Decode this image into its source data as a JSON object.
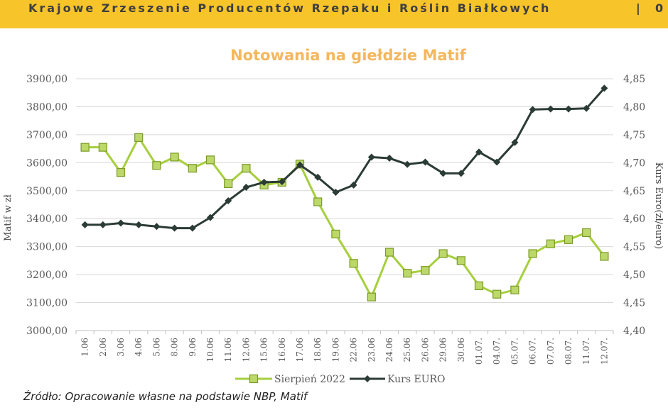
{
  "header": {
    "organization": "Krajowe Zrzeszenie Producentów Rzepaku i Roślin Białkowych",
    "separator": "|",
    "page_number": "0"
  },
  "source_note": "Źródło: Opracowanie własne na podstawie NBP, Matif",
  "colors": {
    "header_bg": "#f7c42a",
    "title": "#f4b75e",
    "series_matif": "#a6cf3c",
    "series_euro": "#2b3b35",
    "grid": "#d9d9d9"
  },
  "chart_data": {
    "type": "line",
    "title": "Notowania na giełdzie Matif",
    "ylabel_left": "Matif w zł",
    "ylabel_right": "Kurs Euro(zł/euro)",
    "ylim_left": [
      3000,
      3900
    ],
    "ylim_right": [
      4.4,
      4.85
    ],
    "yticks_left": [
      "3000,00",
      "3100,00",
      "3200,00",
      "3300,00",
      "3400,00",
      "3500,00",
      "3600,00",
      "3700,00",
      "3800,00",
      "3900,00"
    ],
    "yticks_right": [
      "4,40",
      "4,45",
      "4,50",
      "4,55",
      "4,60",
      "4,65",
      "4,70",
      "4,75",
      "4,80",
      "4,85"
    ],
    "grid": "horizontal",
    "legend_position": "bottom",
    "categories": [
      "1.06",
      "2.06",
      "3.06",
      "4.06",
      "5.06",
      "8.06",
      "9.06",
      "10.06",
      "11.06",
      "12.06",
      "15.06",
      "16.06",
      "17.06",
      "18.06",
      "19.06",
      "22.06",
      "23.06",
      "24.06",
      "25.06",
      "26.06",
      "29.06",
      "30.06",
      "01.07.",
      "04.07.",
      "05.07.",
      "06.07.",
      "07.07.",
      "08.07.",
      "11.07.",
      "12.07."
    ],
    "series": [
      {
        "name": "Sierpień 2022",
        "axis": "left",
        "marker": "square",
        "values": [
          3655,
          3655,
          3565,
          3690,
          3590,
          3620,
          3580,
          3610,
          3525,
          3580,
          3520,
          3530,
          3595,
          3460,
          3345,
          3240,
          3120,
          3280,
          3205,
          3215,
          3275,
          3250,
          3160,
          3130,
          3145,
          3275,
          3310,
          3325,
          3350,
          3265
        ]
      },
      {
        "name": "Kurs EURO",
        "axis": "right",
        "marker": "diamond",
        "values": [
          4.589,
          4.589,
          4.592,
          4.589,
          4.586,
          4.583,
          4.583,
          4.602,
          4.632,
          4.656,
          4.665,
          4.666,
          4.696,
          4.674,
          4.647,
          4.66,
          4.71,
          4.708,
          4.697,
          4.701,
          4.681,
          4.681,
          4.719,
          4.701,
          4.736,
          4.795,
          4.796,
          4.796,
          4.797,
          4.833
        ]
      }
    ]
  }
}
